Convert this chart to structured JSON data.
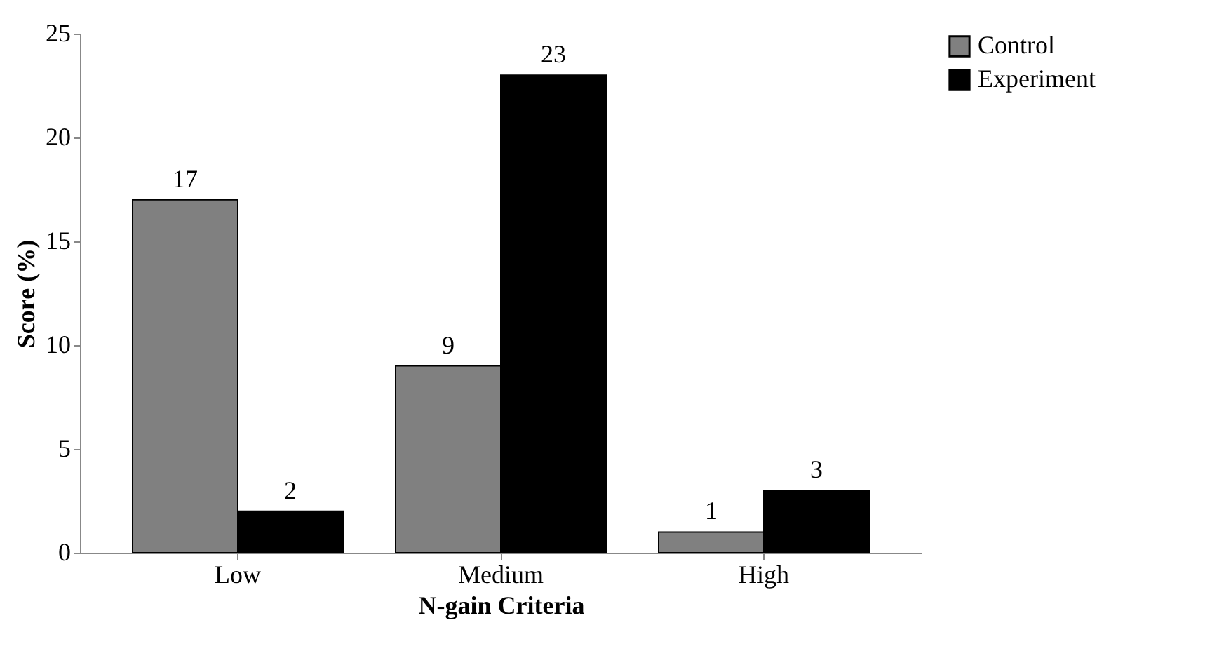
{
  "chart_data": {
    "type": "bar",
    "xlabel": "N-gain Criteria",
    "ylabel": "Score (%)",
    "categories": [
      "Low",
      "Medium",
      "High"
    ],
    "series": [
      {
        "name": "Control",
        "color": "#808080",
        "values": [
          17,
          9,
          1
        ]
      },
      {
        "name": "Experiment",
        "color": "#000000",
        "values": [
          2,
          23,
          3
        ]
      }
    ],
    "ylim": [
      0,
      25
    ],
    "yticks": [
      0,
      5,
      10,
      15,
      20,
      25
    ],
    "grid": false,
    "legend": "right",
    "data_labels": true
  }
}
